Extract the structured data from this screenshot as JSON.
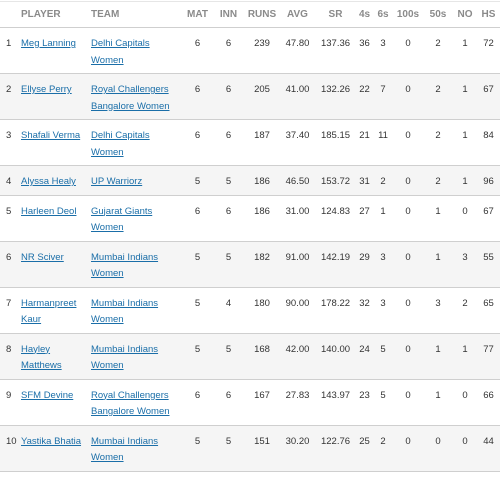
{
  "headers": {
    "idx": "",
    "player": "PLAYER",
    "team": "TEAM",
    "mat": "MAT",
    "inn": "INN",
    "runs": "RUNS",
    "avg": "AVG",
    "sr": "SR",
    "fours": "4s",
    "sixes": "6s",
    "hundreds": "100s",
    "fifties": "50s",
    "no": "NO",
    "hs": "HS"
  },
  "colors": {
    "link": "#1a6ea8",
    "header_text": "#8a8a8a",
    "stripe": "#f5f5f5"
  },
  "rows": [
    {
      "idx": "1",
      "player": "Meg Lanning",
      "team": "Delhi Capitals Women",
      "mat": "6",
      "inn": "6",
      "runs": "239",
      "avg": "47.80",
      "sr": "137.36",
      "fours": "36",
      "sixes": "3",
      "hundreds": "0",
      "fifties": "2",
      "no": "1",
      "hs": "72"
    },
    {
      "idx": "2",
      "player": "Ellyse Perry",
      "team": "Royal Challengers Bangalore Women",
      "mat": "6",
      "inn": "6",
      "runs": "205",
      "avg": "41.00",
      "sr": "132.26",
      "fours": "22",
      "sixes": "7",
      "hundreds": "0",
      "fifties": "2",
      "no": "1",
      "hs": "67"
    },
    {
      "idx": "3",
      "player": "Shafali Verma",
      "team": "Delhi Capitals Women",
      "mat": "6",
      "inn": "6",
      "runs": "187",
      "avg": "37.40",
      "sr": "185.15",
      "fours": "21",
      "sixes": "11",
      "hundreds": "0",
      "fifties": "2",
      "no": "1",
      "hs": "84"
    },
    {
      "idx": "4",
      "player": "Alyssa Healy",
      "team": "UP Warriorz",
      "mat": "5",
      "inn": "5",
      "runs": "186",
      "avg": "46.50",
      "sr": "153.72",
      "fours": "31",
      "sixes": "2",
      "hundreds": "0",
      "fifties": "2",
      "no": "1",
      "hs": "96"
    },
    {
      "idx": "5",
      "player": "Harleen Deol",
      "team": "Gujarat Giants Women",
      "mat": "6",
      "inn": "6",
      "runs": "186",
      "avg": "31.00",
      "sr": "124.83",
      "fours": "27",
      "sixes": "1",
      "hundreds": "0",
      "fifties": "1",
      "no": "0",
      "hs": "67"
    },
    {
      "idx": "6",
      "player": "NR Sciver",
      "team": "Mumbai Indians Women",
      "mat": "5",
      "inn": "5",
      "runs": "182",
      "avg": "91.00",
      "sr": "142.19",
      "fours": "29",
      "sixes": "3",
      "hundreds": "0",
      "fifties": "1",
      "no": "3",
      "hs": "55"
    },
    {
      "idx": "7",
      "player": "Harmanpreet Kaur",
      "team": "Mumbai Indians Women",
      "mat": "5",
      "inn": "4",
      "runs": "180",
      "avg": "90.00",
      "sr": "178.22",
      "fours": "32",
      "sixes": "3",
      "hundreds": "0",
      "fifties": "3",
      "no": "2",
      "hs": "65"
    },
    {
      "idx": "8",
      "player": "Hayley Matthews",
      "team": "Mumbai Indians Women",
      "mat": "5",
      "inn": "5",
      "runs": "168",
      "avg": "42.00",
      "sr": "140.00",
      "fours": "24",
      "sixes": "5",
      "hundreds": "0",
      "fifties": "1",
      "no": "1",
      "hs": "77"
    },
    {
      "idx": "9",
      "player": "SFM Devine",
      "team": "Royal Challengers Bangalore Women",
      "mat": "6",
      "inn": "6",
      "runs": "167",
      "avg": "27.83",
      "sr": "143.97",
      "fours": "23",
      "sixes": "5",
      "hundreds": "0",
      "fifties": "1",
      "no": "0",
      "hs": "66"
    },
    {
      "idx": "10",
      "player": "Yastika Bhatia",
      "team": "Mumbai Indians Women",
      "mat": "5",
      "inn": "5",
      "runs": "151",
      "avg": "30.20",
      "sr": "122.76",
      "fours": "25",
      "sixes": "2",
      "hundreds": "0",
      "fifties": "0",
      "no": "0",
      "hs": "44"
    }
  ]
}
